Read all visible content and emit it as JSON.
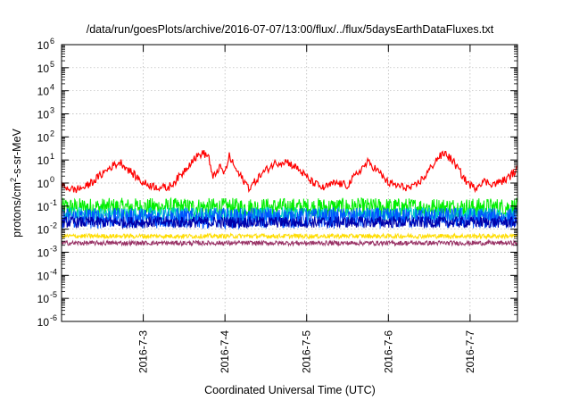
{
  "chart_data": {
    "type": "line",
    "title": "/data/run/goesPlots/archive/2016-07-07/13:00/flux/../flux/5daysEarthDataFluxes.txt",
    "xlabel": "Coordinated Universal Time (UTC)",
    "ylabel": {
      "pre": "protons/cm",
      "sup": "2",
      "post": "-s-sr-MeV"
    },
    "xlim": [
      2.0,
      7.58
    ],
    "x_ticks": [
      {
        "x": 3,
        "label": "2016-7-3"
      },
      {
        "x": 4,
        "label": "2016-7-4"
      },
      {
        "x": 5,
        "label": "2016-7-5"
      },
      {
        "x": 6,
        "label": "2016-7-6"
      },
      {
        "x": 7,
        "label": "2016-7-7"
      }
    ],
    "y_scale": "log",
    "ylim": [
      -6,
      6
    ],
    "y_ticks": [
      {
        "exp": 6,
        "label": "6"
      },
      {
        "exp": 5,
        "label": "5"
      },
      {
        "exp": 4,
        "label": "4"
      },
      {
        "exp": 3,
        "label": "3"
      },
      {
        "exp": 2,
        "label": "2"
      },
      {
        "exp": 1,
        "label": "1"
      },
      {
        "exp": 0,
        "label": "0"
      },
      {
        "exp": -1,
        "label": "-1"
      },
      {
        "exp": -2,
        "label": "-2"
      },
      {
        "exp": -3,
        "label": "-3"
      },
      {
        "exp": -4,
        "label": "-4"
      },
      {
        "exp": -5,
        "label": "-5"
      },
      {
        "exp": -6,
        "label": "-6"
      }
    ],
    "tick_base": "10",
    "grid": true,
    "legend": "none",
    "series": [
      {
        "color": "#ff0000",
        "noise": 0.35,
        "x": [
          2.0,
          2.15,
          2.3,
          2.45,
          2.6,
          2.72,
          2.85,
          3.0,
          3.15,
          3.3,
          3.45,
          3.6,
          3.72,
          3.8,
          3.85,
          3.93,
          4.0,
          4.05,
          4.15,
          4.3,
          4.45,
          4.6,
          4.75,
          4.9,
          5.05,
          5.2,
          5.35,
          5.5,
          5.65,
          5.75,
          5.85,
          6.0,
          6.15,
          6.3,
          6.45,
          6.6,
          6.7,
          6.8,
          6.95,
          7.05,
          7.15,
          7.3,
          7.45,
          7.58
        ],
        "y": [
          0.8,
          0.5,
          0.7,
          1.8,
          5.0,
          8.0,
          3.0,
          1.0,
          0.7,
          0.6,
          2.0,
          10.0,
          20.0,
          15.0,
          1.5,
          5.0,
          2.5,
          15.0,
          3.0,
          0.6,
          2.5,
          7.0,
          9.0,
          4.0,
          1.2,
          0.6,
          1.0,
          0.8,
          3.5,
          8.0,
          4.0,
          1.0,
          0.7,
          0.6,
          2.0,
          12.0,
          20.0,
          8.0,
          1.2,
          0.6,
          1.2,
          0.9,
          1.5,
          4.0
        ]
      },
      {
        "color": "#00ee00",
        "noise": 0.8,
        "x": [
          2.0,
          7.58
        ],
        "y": [
          0.09,
          0.09
        ]
      },
      {
        "color": "#00cccc",
        "noise": 0.6,
        "x": [
          2.0,
          7.58
        ],
        "y": [
          0.045,
          0.045
        ]
      },
      {
        "color": "#0055ff",
        "noise": 0.9,
        "x": [
          2.0,
          7.58
        ],
        "y": [
          0.03,
          0.03
        ]
      },
      {
        "color": "#0000aa",
        "noise": 0.5,
        "x": [
          2.0,
          7.58
        ],
        "y": [
          0.02,
          0.02
        ]
      },
      {
        "color": "#ffdd00",
        "noise": 0.2,
        "x": [
          2.0,
          7.58
        ],
        "y": [
          0.005,
          0.005
        ]
      },
      {
        "color": "#993366",
        "noise": 0.2,
        "x": [
          2.0,
          7.58
        ],
        "y": [
          0.0025,
          0.0025
        ]
      }
    ]
  }
}
